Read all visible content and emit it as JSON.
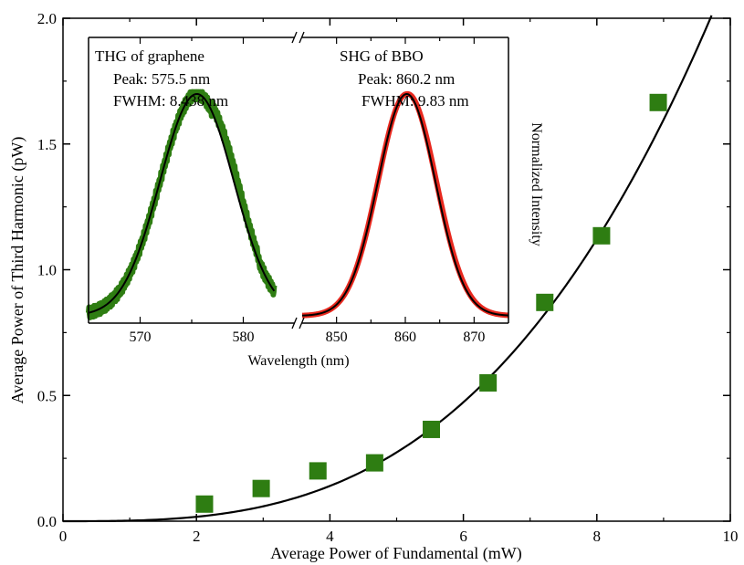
{
  "chart_data": [
    {
      "type": "scatter",
      "xlabel": "Average Power of Fundamental (mW)",
      "ylabel": "Average Power of Third Harmonic (pW)",
      "xlim": [
        0,
        10
      ],
      "ylim": [
        0,
        2.0
      ],
      "xticks": [
        "0",
        "2",
        "4",
        "6",
        "8",
        "10"
      ],
      "yticks": [
        "0.0",
        "0.5",
        "1.0",
        "1.5",
        "2.0"
      ],
      "colors": {
        "marker": "#2e7d12",
        "fit": "#000000"
      },
      "series": [
        {
          "x": [
            2.12,
            2.97,
            3.82,
            4.67,
            5.52,
            6.37,
            7.22,
            8.07,
            8.92
          ],
          "y": [
            0.068,
            0.13,
            0.2,
            0.232,
            0.365,
            0.55,
            0.87,
            1.135,
            1.665
          ]
        }
      ],
      "fit": {
        "form": "cubic",
        "coefficient": 0.00219,
        "x_start": 0,
        "x_end": 9.72
      },
      "grid": false
    },
    {
      "type": "line",
      "inset": true,
      "xlabel": "Wavelength (nm)",
      "ylabel": "Normalized Intensity",
      "broken_axis": true,
      "segments": [
        {
          "xlim": [
            565,
            585
          ],
          "xticks": [
            "570",
            "580"
          ]
        },
        {
          "xlim": [
            845,
            875
          ],
          "xticks": [
            "850",
            "860",
            "870"
          ]
        }
      ],
      "annotations": [
        {
          "title": "THG of graphene",
          "peak": "Peak: 575.5 nm",
          "fwhm": "FWHM: 8.438 nm"
        },
        {
          "title": "SHG of BBO",
          "peak": "Peak: 860.2 nm",
          "fwhm": "FWHM: 9.83 nm"
        }
      ],
      "colors": {
        "thg": "#2e7d12",
        "shg": "#e8281e",
        "fit": "#000000"
      },
      "series": [
        {
          "segment": 0,
          "peak": 575.5,
          "fwhm": 8.438,
          "amplitude": 1.0,
          "baseline": 0.0,
          "shape": "gaussian"
        },
        {
          "segment": 1,
          "peak": 860.2,
          "fwhm": 9.83,
          "amplitude": 1.0,
          "baseline": 0.0,
          "shape": "gaussian"
        }
      ]
    }
  ]
}
